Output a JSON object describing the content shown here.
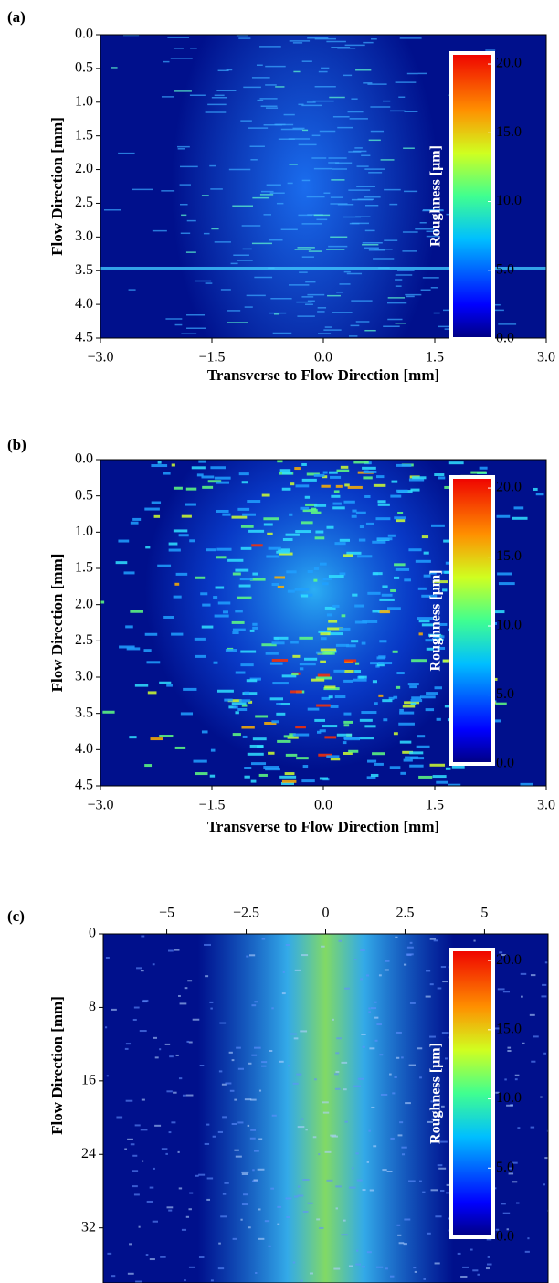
{
  "chart_data": [
    {
      "type": "heatmap",
      "panel_label": "(a)",
      "x_label": "Transverse to Flow Direction [mm]",
      "y_label": "Flow Direction [mm]",
      "xlim": [
        -3,
        3
      ],
      "xticks": [
        {
          "value": -3,
          "label": "−3.0"
        },
        {
          "value": -1.5,
          "label": "−1.5"
        },
        {
          "value": 0,
          "label": "0.0"
        },
        1.5,
        {
          "value": 3,
          "label": "3.0"
        }
      ],
      "ylim": [
        0,
        4.5
      ],
      "yticks": [
        {
          "value": 0,
          "label": "0.0"
        },
        0.5,
        {
          "value": 1,
          "label": "1.0"
        },
        1.5,
        {
          "value": 2,
          "label": "2.0"
        },
        2.5,
        {
          "value": 3,
          "label": "3.0"
        },
        3.5,
        {
          "value": 4,
          "label": "4.0"
        },
        4.5
      ],
      "colorbar": {
        "label": "Roughness [μm]",
        "lim": [
          0,
          20.8
        ],
        "ticks": [
          {
            "value": 0,
            "label": "0.0"
          },
          {
            "value": 5,
            "label": "5.0"
          },
          {
            "value": 10,
            "label": "10.0"
          },
          {
            "value": 15,
            "label": "15.0"
          },
          {
            "value": 20,
            "label": "20.0"
          }
        ]
      }
    },
    {
      "type": "heatmap",
      "panel_label": "(b)",
      "x_label": "Transverse to Flow Direction [mm]",
      "y_label": "Flow Direction [mm]",
      "xlim": [
        -3,
        3
      ],
      "xticks": [
        {
          "value": -3,
          "label": "−3.0"
        },
        {
          "value": -1.5,
          "label": "−1.5"
        },
        {
          "value": 0,
          "label": "0.0"
        },
        1.5,
        {
          "value": 3,
          "label": "3.0"
        }
      ],
      "ylim": [
        0,
        4.5
      ],
      "yticks": [
        {
          "value": 0,
          "label": "0.0"
        },
        0.5,
        {
          "value": 1,
          "label": "1.0"
        },
        1.5,
        {
          "value": 2,
          "label": "2.0"
        },
        2.5,
        {
          "value": 3,
          "label": "3.0"
        },
        3.5,
        {
          "value": 4,
          "label": "4.0"
        },
        4.5
      ],
      "colorbar": {
        "label": "Roughness [μm]",
        "lim": [
          0,
          20.8
        ],
        "ticks": [
          {
            "value": 0,
            "label": "0.0"
          },
          {
            "value": 5,
            "label": "5.0"
          },
          {
            "value": 10,
            "label": "10.0"
          },
          {
            "value": 15,
            "label": "15.0"
          },
          {
            "value": 20,
            "label": "20.0"
          }
        ]
      }
    },
    {
      "type": "heatmap",
      "panel_label": "(c)",
      "y_label": "Flow Direction [mm]",
      "xaxis_position": "top",
      "xlim": [
        -7,
        7
      ],
      "xticks": [
        {
          "value": -5,
          "label": "−5"
        },
        {
          "value": -2.5,
          "label": "−2.5"
        },
        0,
        2.5,
        5
      ],
      "ylim": [
        0,
        38
      ],
      "yticks": [
        0,
        8,
        16,
        24,
        32
      ],
      "colorbar": {
        "label": "Roughness [μm]",
        "lim": [
          0,
          20.8
        ],
        "ticks": [
          {
            "value": 0,
            "label": "0.0"
          },
          {
            "value": 5,
            "label": "5.0"
          },
          {
            "value": 10,
            "label": "10.0"
          },
          {
            "value": 15,
            "label": "15.0"
          },
          {
            "value": 20,
            "label": "20.0"
          }
        ]
      }
    }
  ]
}
